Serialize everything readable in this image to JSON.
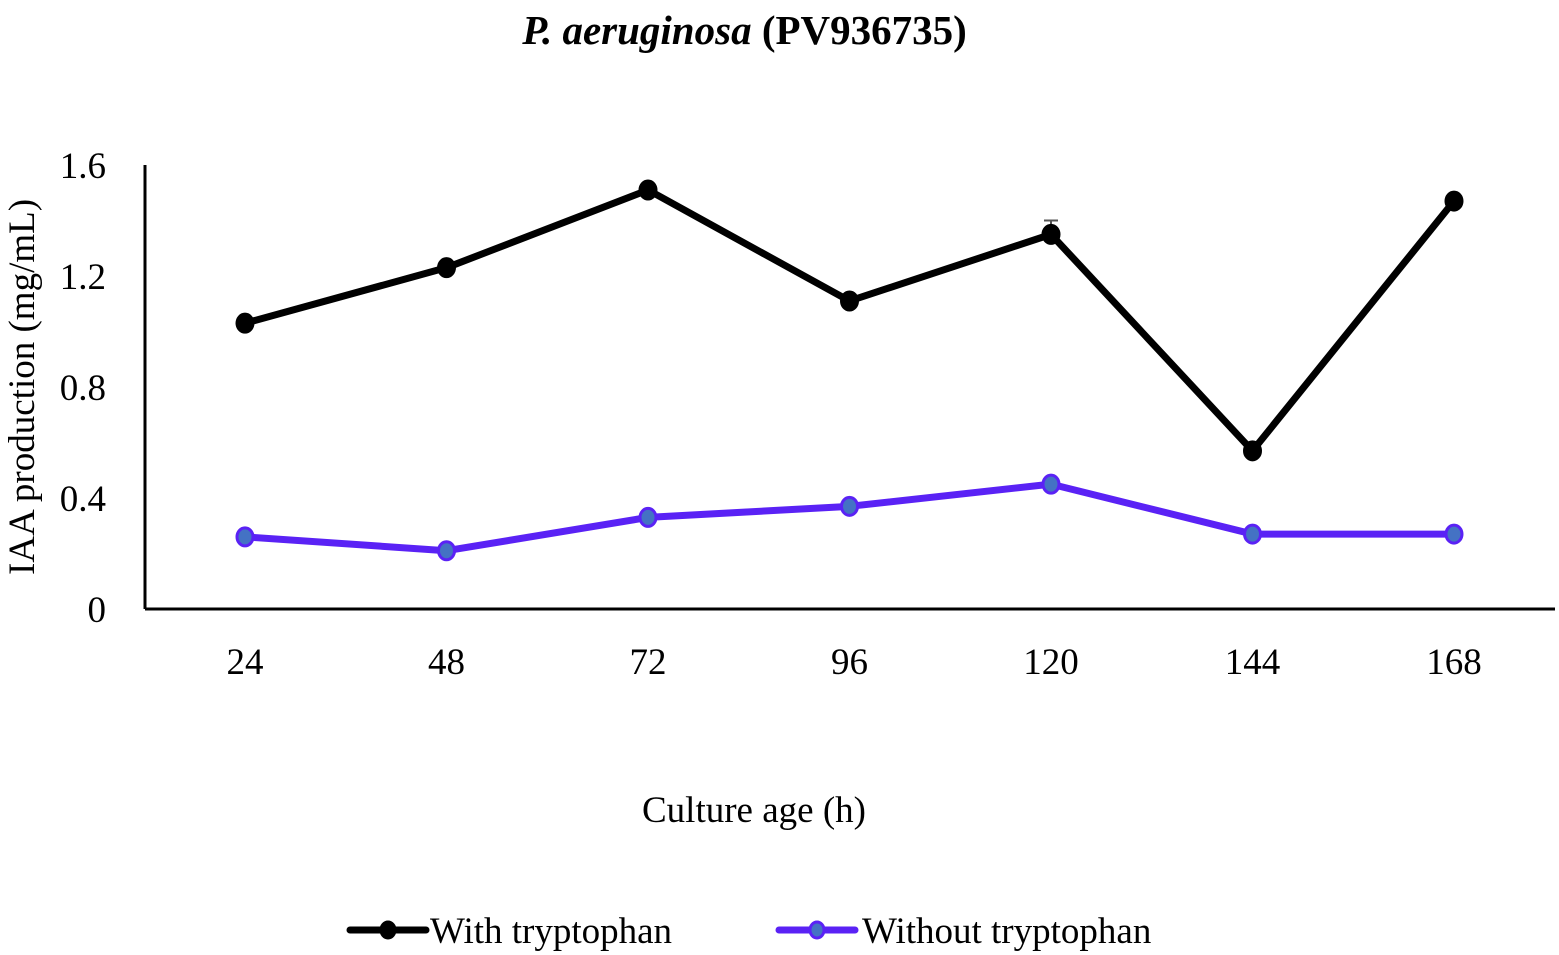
{
  "chart_data": {
    "type": "line",
    "title": {
      "italic_part": "P. aeruginosa",
      "regular_part": " (PV936735)"
    },
    "xlabel": "Culture age (h)",
    "ylabel": "IAA production (mg/mL)",
    "categories": [
      "24",
      "48",
      "72",
      "96",
      "120",
      "144",
      "168"
    ],
    "ylim": [
      0,
      1.6
    ],
    "yticks": [
      "0",
      "0.4",
      "0.8",
      "1.2",
      "1.6"
    ],
    "ytick_values": [
      0,
      0.4,
      0.8,
      1.2,
      1.6
    ],
    "grid": false,
    "legend_position": "bottom",
    "series": [
      {
        "name": "With tryptophan",
        "color": "#000000",
        "marker_fill": "#000000",
        "values": [
          1.03,
          1.23,
          1.51,
          1.11,
          1.35,
          0.57,
          1.47
        ],
        "error": [
          0,
          0,
          0,
          0,
          0.05,
          0,
          0
        ]
      },
      {
        "name": "Without tryptophan",
        "color": "#5a22f5",
        "marker_fill": "#4472c4",
        "values": [
          0.26,
          0.21,
          0.33,
          0.37,
          0.45,
          0.27,
          0.27
        ],
        "error": [
          0,
          0,
          0,
          0,
          0,
          0,
          0
        ]
      }
    ]
  }
}
